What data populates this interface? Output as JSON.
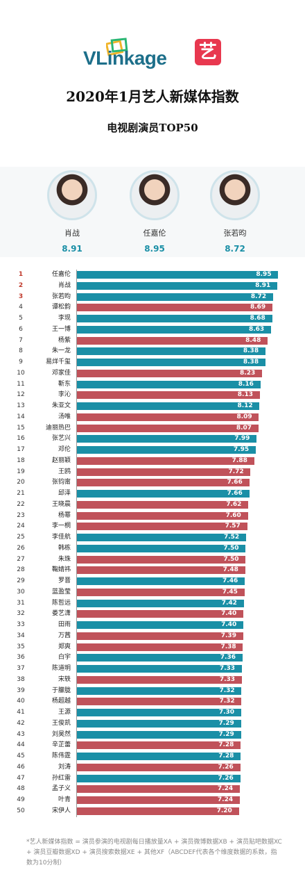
{
  "brand": {
    "logo_text_v": "VLink",
    "logo_text_rest": "age",
    "badge_char": "艺"
  },
  "title": "2020年1月艺人新媒体指数",
  "subtitle": "电视剧演员TOP50",
  "colors": {
    "teal": "#1a8fa6",
    "red": "#c0525a"
  },
  "top3": [
    {
      "name": "肖战",
      "score": "8.91"
    },
    {
      "name": "任嘉伦",
      "score": "8.95"
    },
    {
      "name": "张若昀",
      "score": "8.72"
    }
  ],
  "chart_data": {
    "type": "bar",
    "orientation": "horizontal",
    "xlim": [
      0,
      9
    ],
    "categories": [
      "任嘉伦",
      "肖战",
      "张若昀",
      "谭松韵",
      "李现",
      "王一博",
      "杨紫",
      "朱一龙",
      "易烊千玺",
      "邓家佳",
      "靳东",
      "李沁",
      "朱亚文",
      "汤唯",
      "迪丽热巴",
      "张艺兴",
      "邓伦",
      "赵丽颖",
      "王鸥",
      "张钧甯",
      "邱泽",
      "王晓晨",
      "杨幂",
      "李一桐",
      "李佳航",
      "韩栋",
      "朱珠",
      "鞠婧祎",
      "罗晋",
      "蓝盈莹",
      "陈哲远",
      "娄艺潇",
      "田雨",
      "万茜",
      "郑爽",
      "白宇",
      "陈道明",
      "宋轶",
      "于朦胧",
      "杨超越",
      "王源",
      "王俊凯",
      "刘昊然",
      "辛芷蕾",
      "陈伟霆",
      "刘涛",
      "孙红雷",
      "孟子义",
      "叶青",
      "宋伊人"
    ],
    "values": [
      8.95,
      8.91,
      8.72,
      8.69,
      8.68,
      8.63,
      8.48,
      8.38,
      8.38,
      8.23,
      8.16,
      8.13,
      8.12,
      8.09,
      8.07,
      7.99,
      7.95,
      7.88,
      7.72,
      7.66,
      7.66,
      7.62,
      7.6,
      7.57,
      7.52,
      7.5,
      7.5,
      7.48,
      7.46,
      7.45,
      7.42,
      7.4,
      7.4,
      7.39,
      7.38,
      7.36,
      7.33,
      7.33,
      7.32,
      7.32,
      7.3,
      7.29,
      7.29,
      7.28,
      7.28,
      7.26,
      7.26,
      7.24,
      7.24,
      7.2
    ],
    "value_labels": [
      "8.95",
      "8.91",
      "8.72",
      "8.69",
      "8.68",
      "8.63",
      "8.48",
      "8.38",
      "8.38",
      "8.23",
      "8.16",
      "8.13",
      "8.12",
      "8.09",
      "8.07",
      "7.99",
      "7.95",
      "7.88",
      "7.72",
      "7.66",
      "7.66",
      "7.62",
      "7.60",
      "7.57",
      "7.52",
      "7.50",
      "7.50",
      "7.48",
      "7.46",
      "7.45",
      "7.42",
      "7.40",
      "7.40",
      "7.39",
      "7.38",
      "7.36",
      "7.33",
      "7.33",
      "7.32",
      "7.32",
      "7.30",
      "7.29",
      "7.29",
      "7.28",
      "7.28",
      "7.26",
      "7.26",
      "7.24",
      "7.24",
      "7.20"
    ],
    "bar_colors": [
      "teal",
      "teal",
      "teal",
      "red",
      "teal",
      "teal",
      "red",
      "teal",
      "teal",
      "red",
      "teal",
      "red",
      "teal",
      "red",
      "red",
      "teal",
      "teal",
      "red",
      "red",
      "red",
      "teal",
      "red",
      "red",
      "red",
      "teal",
      "teal",
      "red",
      "red",
      "teal",
      "red",
      "teal",
      "red",
      "teal",
      "red",
      "red",
      "teal",
      "teal",
      "red",
      "teal",
      "red",
      "teal",
      "teal",
      "teal",
      "red",
      "teal",
      "red",
      "teal",
      "red",
      "red",
      "red"
    ]
  },
  "footnote": "*艺人新媒体指数 = 演员参演的电视剧每日播放量XA + 演员微博数据XB + 演员贴吧数据XC + 演员豆瓣数据XD + 演员搜索数据XE + 其他XF（ABCDEF代表各个维度数据的系数，指数为10分制）"
}
